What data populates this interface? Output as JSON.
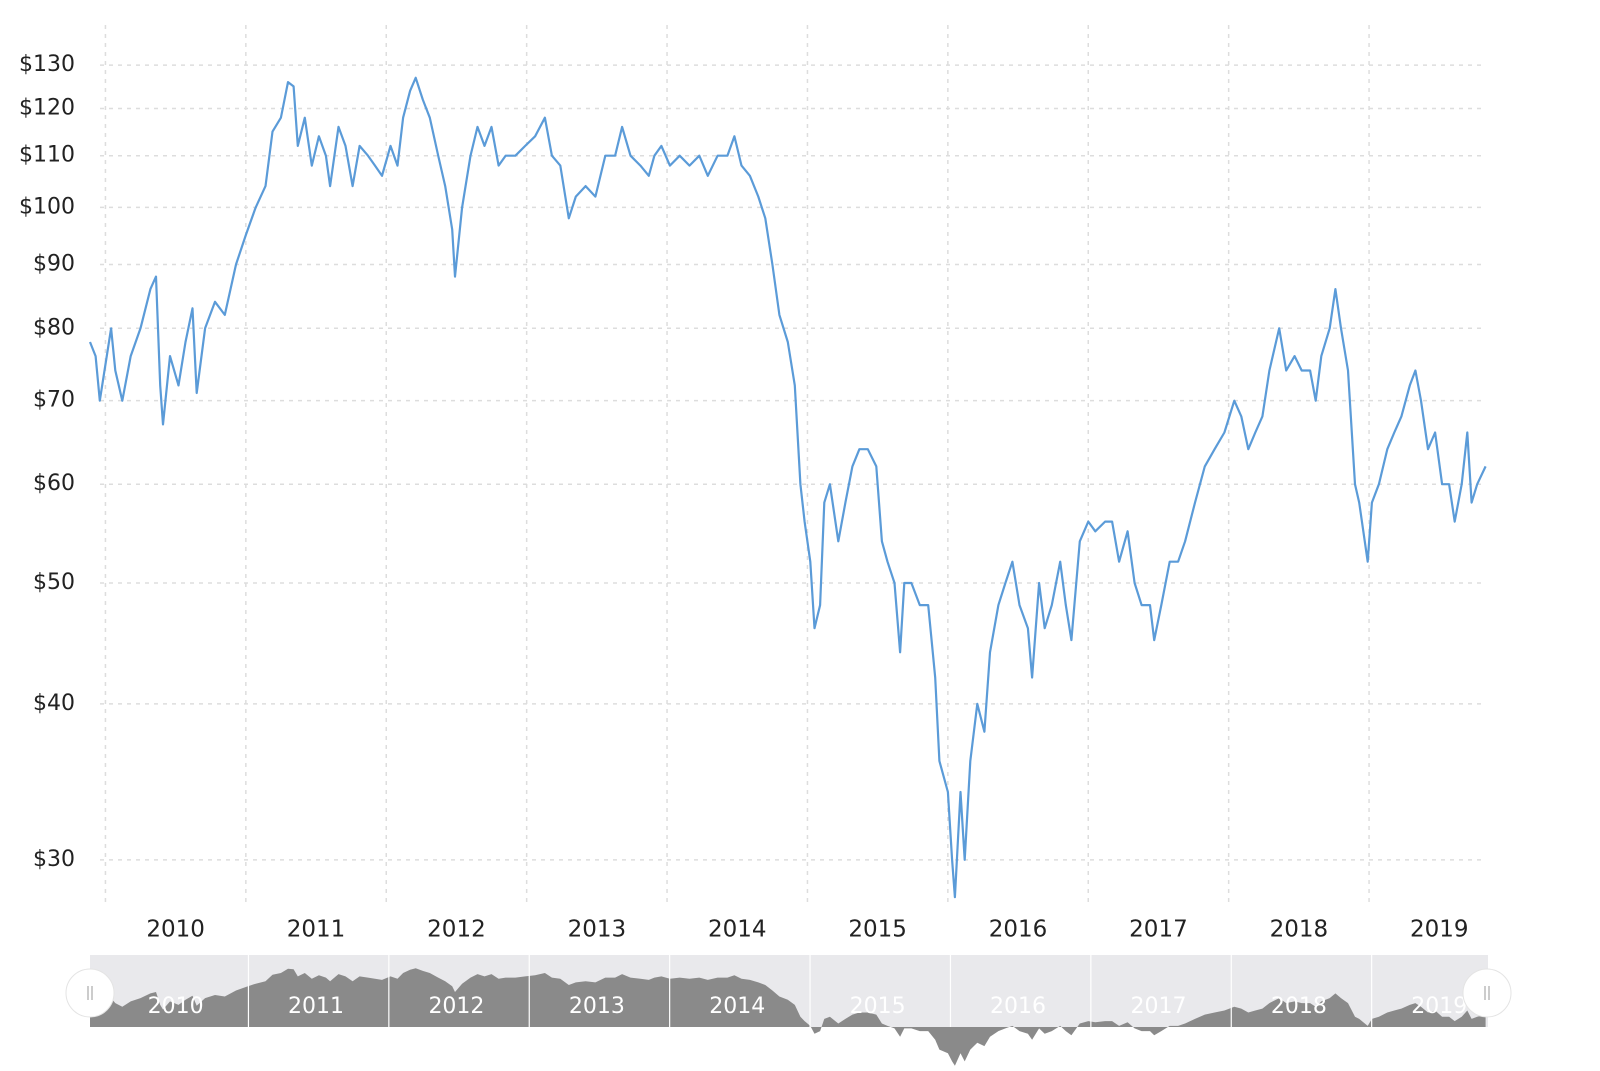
{
  "chart_data": {
    "type": "line",
    "log_scale": true,
    "grid": true,
    "color": "#5b9bd8",
    "xlim": [
      2009.89,
      2019.84
    ],
    "ylim": [
      27.5,
      140
    ],
    "xticks": [
      2010,
      2011,
      2012,
      2013,
      2014,
      2015,
      2016,
      2017,
      2018,
      2019
    ],
    "yticks": [
      {
        "value": 30,
        "label": "$30"
      },
      {
        "value": 40,
        "label": "$40"
      },
      {
        "value": 50,
        "label": "$50"
      },
      {
        "value": 60,
        "label": "$60"
      },
      {
        "value": 70,
        "label": "$70"
      },
      {
        "value": 80,
        "label": "$80"
      },
      {
        "value": 90,
        "label": "$90"
      },
      {
        "value": 100,
        "label": "$100"
      },
      {
        "value": 110,
        "label": "$110"
      },
      {
        "value": 120,
        "label": "$120"
      },
      {
        "value": 130,
        "label": "$130"
      }
    ],
    "x": [
      2009.89,
      2009.93,
      2009.96,
      2010.04,
      2010.07,
      2010.12,
      2010.18,
      2010.25,
      2010.32,
      2010.36,
      2010.39,
      2010.41,
      2010.46,
      2010.52,
      2010.57,
      2010.62,
      2010.65,
      2010.71,
      2010.78,
      2010.85,
      2010.93,
      2011.0,
      2011.07,
      2011.14,
      2011.19,
      2011.25,
      2011.3,
      2011.34,
      2011.37,
      2011.42,
      2011.47,
      2011.52,
      2011.57,
      2011.6,
      2011.66,
      2011.71,
      2011.76,
      2011.81,
      2011.87,
      2011.92,
      2011.97,
      2012.03,
      2012.08,
      2012.12,
      2012.17,
      2012.21,
      2012.26,
      2012.31,
      2012.37,
      2012.42,
      2012.47,
      2012.49,
      2012.54,
      2012.6,
      2012.65,
      2012.7,
      2012.75,
      2012.8,
      2012.85,
      2012.92,
      2012.99,
      2013.06,
      2013.13,
      2013.18,
      2013.24,
      2013.3,
      2013.35,
      2013.42,
      2013.49,
      2013.56,
      2013.63,
      2013.68,
      2013.74,
      2013.81,
      2013.87,
      2013.91,
      2013.96,
      2014.02,
      2014.09,
      2014.16,
      2014.23,
      2014.29,
      2014.36,
      2014.43,
      2014.48,
      2014.53,
      2014.59,
      2014.65,
      2014.7,
      2014.75,
      2014.8,
      2014.86,
      2014.91,
      2014.95,
      2014.98,
      2015.02,
      2015.05,
      2015.09,
      2015.12,
      2015.16,
      2015.22,
      2015.27,
      2015.32,
      2015.37,
      2015.43,
      2015.49,
      2015.53,
      2015.57,
      2015.62,
      2015.66,
      2015.69,
      2015.74,
      2015.8,
      2015.86,
      2015.91,
      2015.94,
      2016.0,
      2016.03,
      2016.05,
      2016.09,
      2016.12,
      2016.16,
      2016.21,
      2016.26,
      2016.3,
      2016.36,
      2016.41,
      2016.46,
      2016.51,
      2016.57,
      2016.6,
      2016.65,
      2016.69,
      2016.74,
      2016.8,
      2016.84,
      2016.88,
      2016.94,
      2017.0,
      2017.05,
      2017.12,
      2017.17,
      2017.22,
      2017.28,
      2017.33,
      2017.38,
      2017.44,
      2017.47,
      2017.52,
      2017.58,
      2017.64,
      2017.69,
      2017.76,
      2017.83,
      2017.9,
      2017.97,
      2018.04,
      2018.09,
      2018.14,
      2018.19,
      2018.24,
      2018.29,
      2018.36,
      2018.41,
      2018.47,
      2018.52,
      2018.58,
      2018.62,
      2018.66,
      2018.72,
      2018.76,
      2018.8,
      2018.85,
      2018.9,
      2018.93,
      2018.99,
      2019.02,
      2019.07,
      2019.13,
      2019.18,
      2019.23,
      2019.29,
      2019.33,
      2019.37,
      2019.42,
      2019.47,
      2019.52,
      2019.57,
      2019.61,
      2019.66,
      2019.7,
      2019.73,
      2019.77,
      2019.83
    ],
    "values": [
      78,
      76,
      70,
      80,
      74,
      70,
      76,
      80,
      86,
      88,
      72,
      67,
      76,
      72,
      78,
      83,
      71,
      80,
      84,
      82,
      90,
      95,
      100,
      104,
      115,
      118,
      126,
      125,
      112,
      118,
      108,
      114,
      110,
      104,
      116,
      112,
      104,
      112,
      110,
      108,
      106,
      112,
      108,
      118,
      124,
      127,
      122,
      118,
      110,
      104,
      96,
      88,
      100,
      110,
      116,
      112,
      116,
      108,
      110,
      110,
      112,
      114,
      118,
      110,
      108,
      98,
      102,
      104,
      102,
      110,
      110,
      116,
      110,
      108,
      106,
      110,
      112,
      108,
      110,
      108,
      110,
      106,
      110,
      110,
      114,
      108,
      106,
      102,
      98,
      90,
      82,
      78,
      72,
      60,
      56,
      52,
      46,
      48,
      58,
      60,
      54,
      58,
      62,
      64,
      64,
      62,
      54,
      52,
      50,
      44,
      50,
      50,
      48,
      48,
      42,
      36,
      34,
      30,
      28,
      34,
      30,
      36,
      40,
      38,
      44,
      48,
      50,
      52,
      48,
      46,
      42,
      50,
      46,
      48,
      52,
      48,
      45,
      54,
      56,
      55,
      56,
      56,
      52,
      55,
      50,
      48,
      48,
      45,
      48,
      52,
      52,
      54,
      58,
      62,
      64,
      66,
      70,
      68,
      64,
      66,
      68,
      74,
      80,
      74,
      76,
      74,
      74,
      70,
      76,
      80,
      86,
      80,
      74,
      60,
      58,
      52,
      58,
      60,
      64,
      66,
      68,
      72,
      74,
      70,
      64,
      66,
      60,
      60,
      56,
      60,
      66,
      58,
      60,
      62
    ]
  }
}
